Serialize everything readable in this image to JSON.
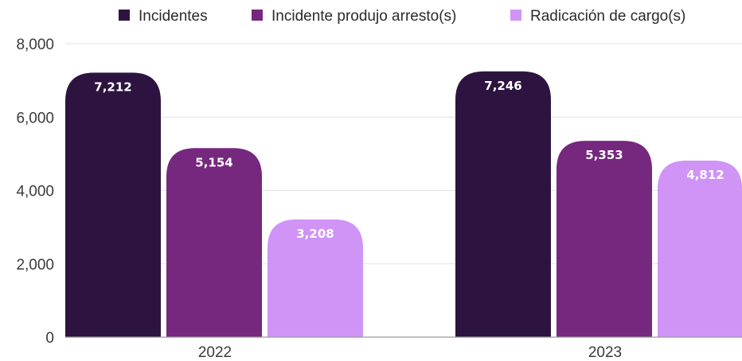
{
  "chart_data": {
    "type": "bar",
    "categories": [
      "2022",
      "2023"
    ],
    "series": [
      {
        "name": "Incidentes",
        "color": "#2d1440",
        "values": [
          7212,
          7246
        ],
        "labels": [
          "7,212",
          "7,246"
        ]
      },
      {
        "name": "Incidente produjo arresto(s)",
        "color": "#76287e",
        "values": [
          5154,
          5353
        ],
        "labels": [
          "5,154",
          "5,353"
        ]
      },
      {
        "name": "Radicación de cargo(s)",
        "color": "#cf94f6",
        "values": [
          3208,
          4812
        ],
        "labels": [
          "3,208",
          "4,812"
        ]
      }
    ],
    "ylim": [
      0,
      8000
    ],
    "yticks": [
      0,
      2000,
      4000,
      6000,
      8000
    ],
    "ytick_labels": [
      "0",
      "2,000",
      "4,000",
      "6,000",
      "8,000"
    ],
    "grid": true,
    "legend_position": "top-center",
    "title": "",
    "xlabel": "",
    "ylabel": ""
  }
}
